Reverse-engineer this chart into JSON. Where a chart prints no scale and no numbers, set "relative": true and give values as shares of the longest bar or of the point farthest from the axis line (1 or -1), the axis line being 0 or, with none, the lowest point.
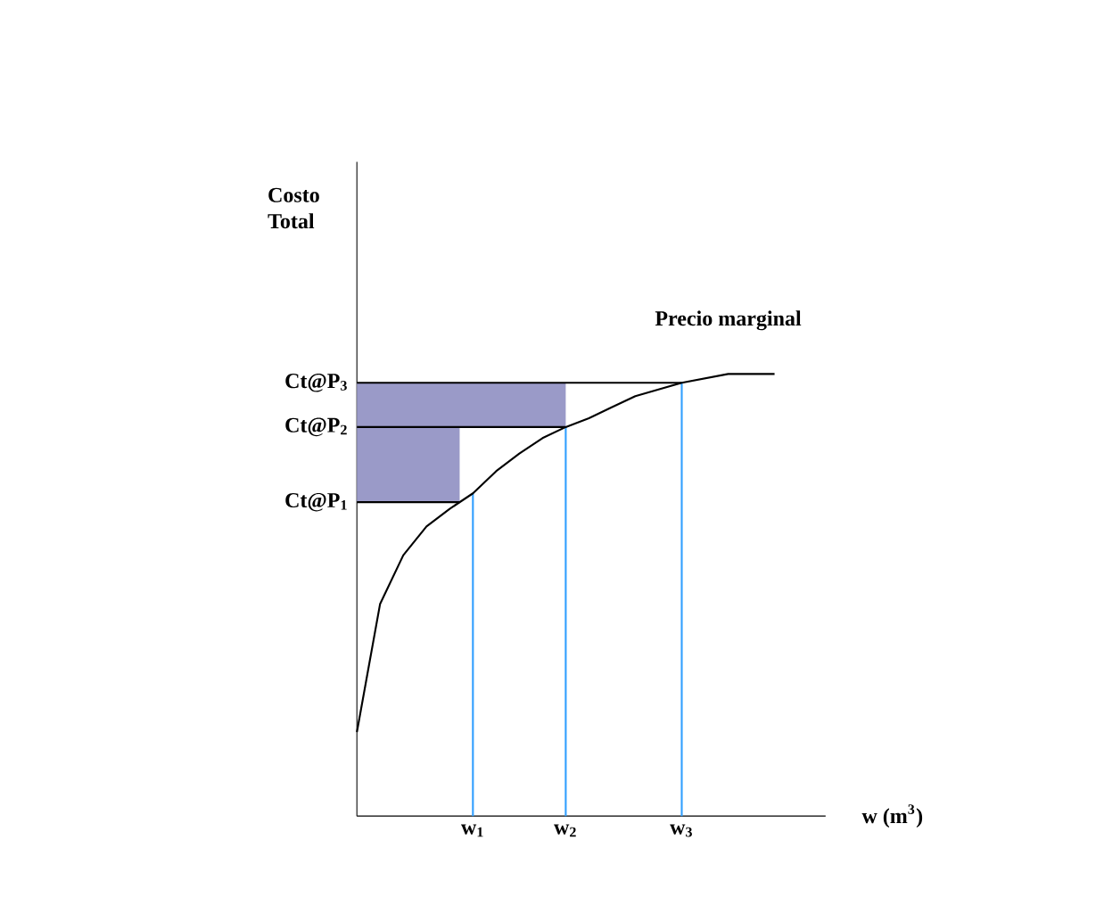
{
  "chart_data": {
    "type": "line",
    "relative": true,
    "annotations": [
      "Costo Total"
    ],
    "xlabel": "w (m$^{3}$)",
    "categories": [
      null,
      null,
      null,
      null,
      null,
      "w$_{1}$",
      null,
      null,
      null,
      "w$_{2}$",
      null,
      null,
      null,
      null,
      "w$_{3}$",
      null,
      null,
      null,
      null
    ],
    "series": [
      {
        "name": "Precio marginal",
        "color": "#000000",
        "values": [
          0.19,
          0.48,
          0.59,
          0.655,
          0.695,
          0.73,
          0.78,
          0.82,
          0.855,
          0.88,
          0.9,
          0.925,
          0.95,
          0.965,
          0.98,
          0.99,
          1.0,
          1.0,
          1.0
        ]
      }
    ],
    "ref_lines": [
      {
        "axis": "y",
        "value": 0.71,
        "label": "Ct@P$_{1}$",
        "color": "#000000"
      },
      {
        "axis": "y",
        "value": 0.88,
        "label": "Ct@P$_{2}$",
        "color": "#000000"
      },
      {
        "axis": "y",
        "value": 0.98,
        "label": "Ct@P$_{3}$",
        "color": "#000000"
      },
      {
        "axis": "x",
        "value": "w$_{1}$",
        "color": "#33a0ff"
      },
      {
        "axis": "x",
        "value": "w$_{2}$",
        "color": "#33a0ff"
      },
      {
        "axis": "x",
        "value": "w$_{3}$",
        "color": "#33a0ff"
      }
    ],
    "bands": [
      {
        "axis": "y",
        "from": 0.71,
        "to": 0.88,
        "color": "#9a9ac8"
      },
      {
        "axis": "y",
        "from": 0.88,
        "to": 0.98,
        "color": "#9a9ac8"
      }
    ],
    "marker": "none",
    "line_style": "solid"
  }
}
